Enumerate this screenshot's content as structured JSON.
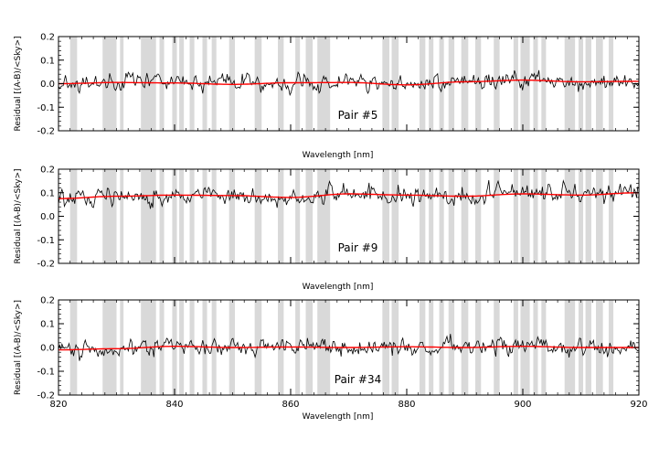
{
  "chart_data": [
    {
      "type": "line",
      "title": "",
      "xlabel": "Wavelength [nm]",
      "ylabel": "Residual [(A-B)/<Sky>]",
      "annotation": "Pair #5",
      "xlim": [
        820,
        920
      ],
      "ylim": [
        -0.2,
        0.2
      ],
      "xticks": [
        820,
        840,
        860,
        880,
        900,
        920
      ],
      "yticks": [
        "0.2",
        "0.1",
        "0.0",
        "-0.1",
        "-0.2"
      ],
      "ytick_values": [
        0.2,
        0.1,
        0.0,
        -0.1,
        -0.2
      ],
      "grid": false,
      "shaded_bands_nm": [
        [
          822.0,
          823.2
        ],
        [
          827.6,
          830.0
        ],
        [
          830.6,
          831.2
        ],
        [
          834.2,
          836.8
        ],
        [
          837.4,
          838.2
        ],
        [
          839.6,
          840.4
        ],
        [
          840.8,
          841.6
        ],
        [
          842.6,
          843.4
        ],
        [
          844.8,
          845.6
        ],
        [
          846.4,
          847.2
        ],
        [
          849.4,
          850.4
        ],
        [
          853.8,
          855.0
        ],
        [
          857.8,
          858.8
        ],
        [
          860.8,
          861.6
        ],
        [
          862.6,
          863.8
        ],
        [
          864.6,
          866.8
        ],
        [
          875.8,
          877.0
        ],
        [
          877.4,
          878.6
        ],
        [
          882.2,
          883.2
        ],
        [
          883.8,
          884.6
        ],
        [
          885.6,
          886.4
        ],
        [
          887.2,
          888.2
        ],
        [
          889.4,
          890.6
        ],
        [
          891.8,
          892.8
        ],
        [
          895.0,
          896.0
        ],
        [
          898.4,
          899.2
        ],
        [
          899.6,
          901.2
        ],
        [
          901.8,
          902.6
        ],
        [
          903.2,
          904.0
        ],
        [
          907.2,
          909.0
        ],
        [
          909.6,
          910.4
        ],
        [
          910.8,
          911.8
        ],
        [
          912.6,
          913.8
        ],
        [
          914.8,
          915.6
        ]
      ],
      "series": [
        {
          "role": "residual",
          "color": "#000000",
          "x_range": [
            820,
            920
          ],
          "n_points": 500,
          "offset": 0.0,
          "noise_sigma": 0.025,
          "seed": 5
        },
        {
          "role": "smoothed fit",
          "color": "#ff0000",
          "x": [
            820,
            830,
            840,
            850,
            860,
            870,
            880,
            890,
            900,
            910,
            920
          ],
          "y": [
            0.0,
            0.005,
            0.003,
            -0.003,
            0.004,
            0.005,
            -0.005,
            0.008,
            0.015,
            0.008,
            0.01
          ]
        }
      ]
    },
    {
      "type": "line",
      "title": "",
      "xlabel": "Wavelength [nm]",
      "ylabel": "Residual [(A-B)/<Sky>]",
      "annotation": "Pair #9",
      "xlim": [
        820,
        920
      ],
      "ylim": [
        -0.2,
        0.2
      ],
      "xticks": [
        820,
        840,
        860,
        880,
        900,
        920
      ],
      "yticks": [
        "0.2",
        "0.1",
        "0.0",
        "-0.1",
        "-0.2"
      ],
      "ytick_values": [
        0.2,
        0.1,
        0.0,
        -0.1,
        -0.2
      ],
      "grid": false,
      "shaded_bands_nm": [
        [
          822.0,
          823.2
        ],
        [
          827.6,
          830.0
        ],
        [
          830.6,
          831.2
        ],
        [
          834.2,
          836.8
        ],
        [
          837.4,
          838.2
        ],
        [
          839.6,
          840.4
        ],
        [
          840.8,
          841.6
        ],
        [
          842.6,
          843.4
        ],
        [
          844.8,
          845.6
        ],
        [
          846.4,
          847.2
        ],
        [
          849.4,
          850.4
        ],
        [
          853.8,
          855.0
        ],
        [
          857.8,
          858.8
        ],
        [
          860.8,
          861.6
        ],
        [
          862.6,
          863.8
        ],
        [
          864.6,
          866.8
        ],
        [
          875.8,
          877.0
        ],
        [
          877.4,
          878.6
        ],
        [
          882.2,
          883.2
        ],
        [
          883.8,
          884.6
        ],
        [
          885.6,
          886.4
        ],
        [
          887.2,
          888.2
        ],
        [
          889.4,
          890.6
        ],
        [
          891.8,
          892.8
        ],
        [
          895.0,
          896.0
        ],
        [
          898.4,
          899.2
        ],
        [
          899.6,
          901.2
        ],
        [
          901.8,
          902.6
        ],
        [
          903.2,
          904.0
        ],
        [
          907.2,
          909.0
        ],
        [
          909.6,
          910.4
        ],
        [
          910.8,
          911.8
        ],
        [
          912.6,
          913.8
        ],
        [
          914.8,
          915.6
        ]
      ],
      "series": [
        {
          "role": "residual",
          "color": "#000000",
          "x_range": [
            820,
            920
          ],
          "n_points": 500,
          "offset": 0.09,
          "noise_sigma": 0.028,
          "seed": 9
        },
        {
          "role": "smoothed fit",
          "color": "#ff0000",
          "x": [
            820,
            830,
            840,
            850,
            860,
            870,
            880,
            890,
            900,
            910,
            920
          ],
          "y": [
            0.075,
            0.085,
            0.09,
            0.088,
            0.08,
            0.095,
            0.09,
            0.085,
            0.095,
            0.09,
            0.1
          ]
        }
      ]
    },
    {
      "type": "line",
      "title": "",
      "xlabel": "Wavelength [nm]",
      "ylabel": "Residual [(A-B)/<Sky>]",
      "annotation": "Pair #34",
      "xlim": [
        820,
        920
      ],
      "ylim": [
        -0.2,
        0.2
      ],
      "xticks": [
        820,
        840,
        860,
        880,
        900,
        920
      ],
      "yticks": [
        "0.2",
        "0.1",
        "0.0",
        "-0.1",
        "-0.2"
      ],
      "ytick_values": [
        0.2,
        0.1,
        0.0,
        -0.1,
        -0.2
      ],
      "grid": false,
      "shaded_bands_nm": [
        [
          822.0,
          823.2
        ],
        [
          827.6,
          830.0
        ],
        [
          830.6,
          831.2
        ],
        [
          834.2,
          836.8
        ],
        [
          837.4,
          838.2
        ],
        [
          839.6,
          840.4
        ],
        [
          840.8,
          841.6
        ],
        [
          842.6,
          843.4
        ],
        [
          844.8,
          845.6
        ],
        [
          846.4,
          847.2
        ],
        [
          849.4,
          850.4
        ],
        [
          853.8,
          855.0
        ],
        [
          857.8,
          858.8
        ],
        [
          860.8,
          861.6
        ],
        [
          862.6,
          863.8
        ],
        [
          864.6,
          866.8
        ],
        [
          875.8,
          877.0
        ],
        [
          877.4,
          878.6
        ],
        [
          882.2,
          883.2
        ],
        [
          883.8,
          884.6
        ],
        [
          885.6,
          886.4
        ],
        [
          887.2,
          888.2
        ],
        [
          889.4,
          890.6
        ],
        [
          891.8,
          892.8
        ],
        [
          895.0,
          896.0
        ],
        [
          898.4,
          899.2
        ],
        [
          899.6,
          901.2
        ],
        [
          901.8,
          902.6
        ],
        [
          903.2,
          904.0
        ],
        [
          907.2,
          909.0
        ],
        [
          909.6,
          910.4
        ],
        [
          910.8,
          911.8
        ],
        [
          912.6,
          913.8
        ],
        [
          914.8,
          915.6
        ]
      ],
      "series": [
        {
          "role": "residual",
          "color": "#000000",
          "x_range": [
            820,
            920
          ],
          "n_points": 500,
          "offset": 0.0,
          "noise_sigma": 0.025,
          "seed": 34
        },
        {
          "role": "smoothed fit",
          "color": "#ff0000",
          "x": [
            820,
            830,
            840,
            850,
            860,
            870,
            880,
            890,
            900,
            910,
            920
          ],
          "y": [
            -0.01,
            -0.005,
            0.005,
            0.0,
            0.002,
            0.0,
            0.003,
            0.0,
            0.005,
            0.0,
            0.0
          ]
        }
      ]
    }
  ]
}
